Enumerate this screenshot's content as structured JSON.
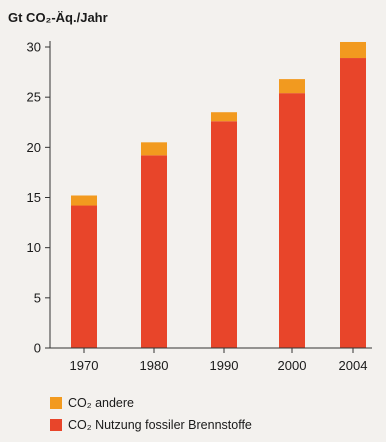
{
  "chart_data": {
    "type": "bar",
    "stacked": true,
    "ylabel": "Gt CO₂-Äq./Jahr",
    "xlabel": "",
    "categories": [
      "1970",
      "1980",
      "1990",
      "2000",
      "2004"
    ],
    "ylim": [
      0,
      30
    ],
    "yticks": [
      0,
      5,
      10,
      15,
      20,
      25,
      30
    ],
    "series": [
      {
        "name": "CO₂ Nutzung fossiler Brennstoffe",
        "color": "#e8452a",
        "values": [
          14.2,
          19.2,
          22.6,
          25.4,
          28.9
        ]
      },
      {
        "name": "CO₂ andere",
        "color": "#f29a1f",
        "values": [
          1.0,
          1.3,
          0.9,
          1.4,
          1.6
        ]
      }
    ],
    "legend": "bottom-left",
    "grid": false
  }
}
